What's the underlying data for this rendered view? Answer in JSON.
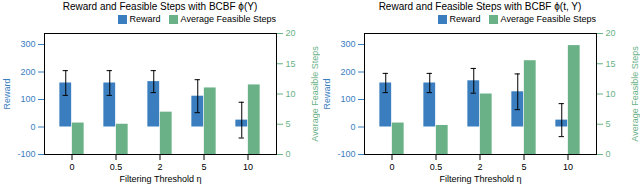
{
  "chart_data": [
    {
      "type": "bar",
      "title": "Reward and Feasible Steps with BCBF ϕ(Y)",
      "categories": [
        "0",
        "0.5",
        "2",
        "5",
        "10"
      ],
      "xlabel": "Filtering Threshold η",
      "ylabel": "Reward",
      "y2label": "Average Feasible Steps",
      "series": [
        {
          "name": "Reward",
          "color": "#3a7ebf",
          "values": [
            160,
            160,
            165,
            112,
            25
          ],
          "errors": [
            45,
            45,
            40,
            60,
            65
          ],
          "error_color": "black"
        },
        {
          "name": "Average Feasible Steps",
          "color": "#6ab187",
          "values": [
            5.2,
            5.0,
            7.0,
            11.0,
            11.5
          ],
          "axis": "y2"
        }
      ],
      "ylim": [
        -100,
        340
      ],
      "yticks": [
        -100,
        0,
        100,
        200,
        300
      ],
      "y2lim": [
        0,
        20
      ],
      "y2ticks": [
        0,
        5,
        10,
        15,
        20
      ],
      "legend": "upper right"
    },
    {
      "type": "bar",
      "title": "Reward and Feasible Steps with BCBF ϕ(t, Y)",
      "categories": [
        "0",
        "0.5",
        "2",
        "5",
        "10"
      ],
      "xlabel": "Filtering Threshold η",
      "ylabel": "Reward",
      "y2label": "Average Feasible Steps",
      "series": [
        {
          "name": "Reward",
          "color": "#3a7ebf",
          "values": [
            160,
            160,
            168,
            128,
            25
          ],
          "errors": [
            35,
            35,
            45,
            65,
            60
          ],
          "error_color": "black"
        },
        {
          "name": "Average Feasible Steps",
          "color": "#6ab187",
          "values": [
            5.2,
            4.8,
            10.0,
            15.5,
            18.0
          ],
          "axis": "y2"
        }
      ],
      "ylim": [
        -100,
        340
      ],
      "yticks": [
        -100,
        0,
        100,
        200,
        300
      ],
      "y2lim": [
        0,
        20
      ],
      "y2ticks": [
        0,
        5,
        10,
        15,
        20
      ],
      "legend": "upper right"
    }
  ]
}
